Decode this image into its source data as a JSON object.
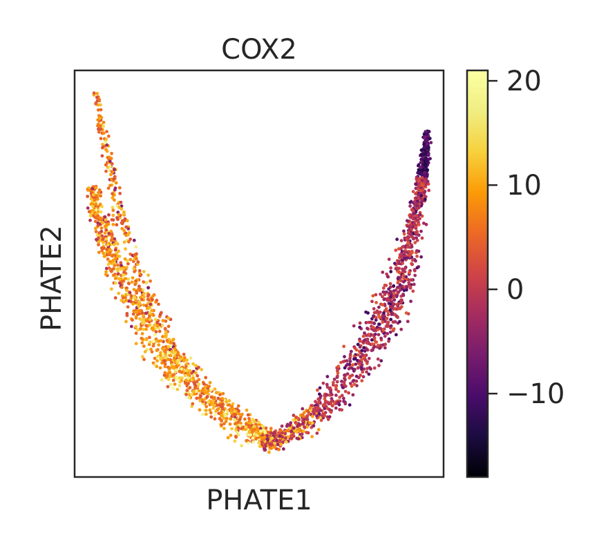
{
  "chart_data": {
    "type": "scatter",
    "title": "COX2",
    "xlabel": "PHATE1",
    "ylabel": "PHATE2",
    "x_ticks": [],
    "y_ticks": [],
    "colormap": "inferno",
    "colorbar": {
      "range": [
        -18,
        21
      ],
      "ticks": [
        20,
        10,
        0,
        -10
      ],
      "tick_labels": [
        "20",
        "10",
        "0",
        "−10"
      ]
    },
    "embedding": "V-shaped cloud of cells, left arm high-valued (orange/red, 5 to 15) with yellow highlights near the lower-left bend, right arm lower-valued (magenta/purple, -10 to 5)",
    "series": [
      {
        "segment": "left-upper-arm",
        "value_range": [
          2,
          12
        ]
      },
      {
        "segment": "left-lower-arm",
        "value_range": [
          0,
          16
        ]
      },
      {
        "segment": "bottom",
        "value_range": [
          -5,
          18
        ]
      },
      {
        "segment": "right-arm",
        "value_range": [
          -14,
          6
        ]
      }
    ]
  }
}
